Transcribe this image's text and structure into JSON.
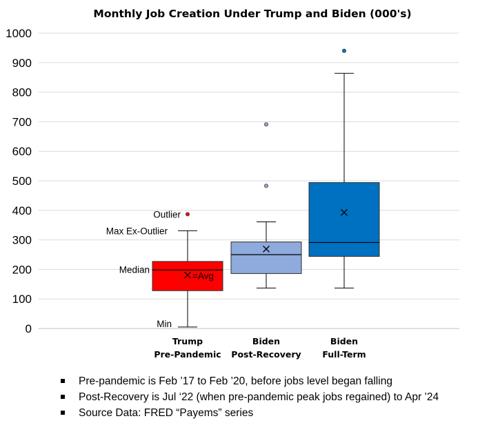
{
  "chart_data": {
    "type": "box",
    "title": "Monthly Job Creation Under Trump and Biden (000's)",
    "xlabel": "",
    "ylabel": "",
    "ylim": [
      0,
      1000
    ],
    "yticks": [
      0,
      100,
      200,
      300,
      400,
      500,
      600,
      700,
      800,
      900,
      1000
    ],
    "grid": true,
    "series": [
      {
        "name": "Trump Pre-Pandemic",
        "label_lines": [
          "Trump",
          "Pre-Pandemic"
        ],
        "color": "#ff0000",
        "min": 5,
        "q1": 128,
        "median": 198,
        "q3": 227,
        "max_ex_outlier": 331,
        "mean": 181,
        "outliers": [
          387
        ]
      },
      {
        "name": "Biden Post-Recovery",
        "label_lines": [
          "Biden",
          "Post-Recovery"
        ],
        "color": "#8faadc",
        "min": 137,
        "q1": 186,
        "median": 250,
        "q3": 293,
        "max_ex_outlier": 361,
        "mean": 269,
        "outliers": [
          483,
          691
        ]
      },
      {
        "name": "Biden Full-Term",
        "label_lines": [
          "Biden",
          "Full-Term"
        ],
        "color": "#0070c0",
        "min": 137,
        "q1": 244,
        "median": 291,
        "q3": 494,
        "max_ex_outlier": 864,
        "mean": 393,
        "outliers": [
          940
        ]
      }
    ],
    "annotations": {
      "outlier": "Outlier",
      "max_ex_outlier": "Max Ex-Outlier",
      "median": "Median",
      "min": "Min",
      "avg": "=Avg"
    }
  },
  "notes": [
    "Pre-pandemic is Feb ’17 to Feb ’20, before jobs level began falling",
    "Post-Recovery is Jul ‘22 (when pre-pandemic peak jobs regained) to Apr ’24",
    "Source Data:  FRED “Payems” series"
  ]
}
